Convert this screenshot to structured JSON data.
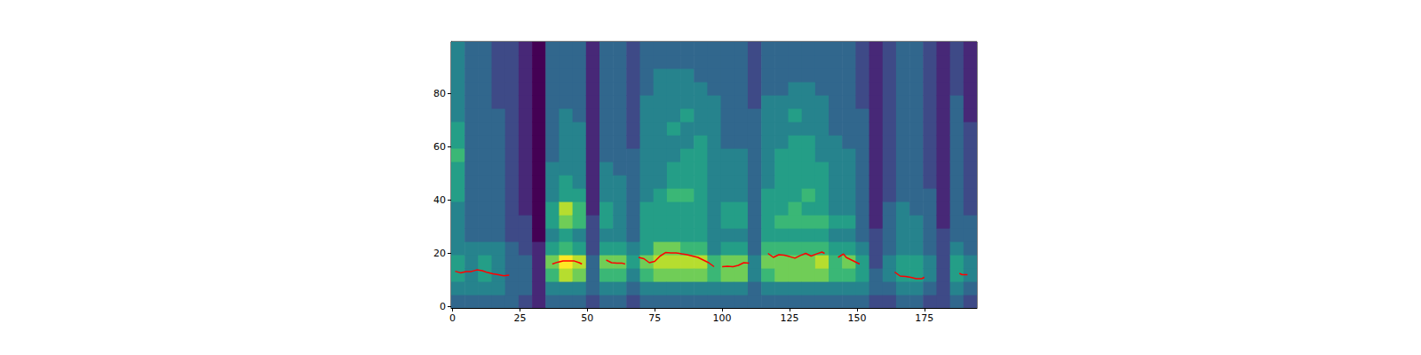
{
  "chart_data": {
    "type": "heatmap",
    "xlim": [
      -0.5,
      194.5
    ],
    "ylim": [
      -0.5,
      99.5
    ],
    "xticks": [
      0,
      25,
      50,
      75,
      100,
      125,
      150,
      175
    ],
    "yticks": [
      0,
      20,
      40,
      60,
      80
    ],
    "x": [
      2,
      7,
      12,
      17,
      22,
      27,
      32,
      37,
      42,
      47,
      52,
      57,
      62,
      67,
      72,
      77,
      82,
      87,
      92,
      97,
      102,
      107,
      112,
      117,
      122,
      127,
      132,
      137,
      142,
      147,
      152,
      157,
      162,
      167,
      172,
      177,
      182,
      187,
      192
    ],
    "y": [
      2,
      7,
      12,
      17,
      22,
      27,
      32,
      37,
      42,
      47,
      52,
      57,
      62,
      67,
      72,
      77,
      82,
      87,
      92,
      97
    ],
    "color_range": [
      0,
      9
    ],
    "cells": [
      [
        3,
        4,
        5,
        5,
        4,
        4,
        4,
        4,
        5,
        5,
        5,
        6,
        5,
        5,
        4,
        4,
        4,
        4,
        4,
        4
      ],
      [
        3,
        4,
        4,
        4,
        4,
        3,
        3,
        3,
        3,
        3,
        3,
        3,
        3,
        3,
        3,
        3,
        3,
        3,
        3,
        3
      ],
      [
        3,
        4,
        5,
        5,
        4,
        3,
        3,
        3,
        3,
        3,
        3,
        3,
        3,
        3,
        3,
        3,
        3,
        3,
        3,
        3
      ],
      [
        3,
        4,
        4,
        4,
        4,
        3,
        3,
        3,
        3,
        3,
        3,
        3,
        3,
        3,
        3,
        2,
        2,
        2,
        2,
        2
      ],
      [
        3,
        3,
        3,
        3,
        3,
        2,
        2,
        2,
        2,
        2,
        2,
        2,
        2,
        2,
        2,
        2,
        2,
        2,
        2,
        2
      ],
      [
        2,
        3,
        3,
        3,
        2,
        2,
        2,
        1,
        1,
        1,
        1,
        1,
        1,
        1,
        1,
        1,
        1,
        1,
        1,
        1
      ],
      [
        1,
        1,
        1,
        1,
        1,
        0,
        0,
        0,
        0,
        0,
        0,
        0,
        0,
        0,
        0,
        0,
        0,
        0,
        0,
        0
      ],
      [
        3,
        4,
        6,
        7,
        5,
        4,
        5,
        5,
        4,
        4,
        4,
        3,
        3,
        3,
        3,
        3,
        3,
        3,
        3,
        3
      ],
      [
        3,
        4,
        8,
        9,
        6,
        5,
        7,
        8,
        5,
        5,
        4,
        4,
        4,
        4,
        4,
        3,
        3,
        3,
        3,
        3
      ],
      [
        3,
        4,
        7,
        8,
        5,
        4,
        6,
        6,
        5,
        4,
        4,
        4,
        4,
        4,
        3,
        3,
        3,
        3,
        3,
        3
      ],
      [
        2,
        3,
        3,
        3,
        2,
        2,
        2,
        1,
        1,
        1,
        1,
        1,
        1,
        1,
        1,
        1,
        1,
        1,
        1,
        1
      ],
      [
        3,
        4,
        6,
        7,
        5,
        4,
        5,
        5,
        4,
        4,
        4,
        3,
        3,
        3,
        3,
        3,
        3,
        3,
        3,
        3
      ],
      [
        3,
        4,
        6,
        7,
        5,
        4,
        4,
        4,
        4,
        4,
        3,
        3,
        3,
        3,
        3,
        3,
        3,
        3,
        3,
        3
      ],
      [
        2,
        3,
        4,
        5,
        4,
        3,
        3,
        3,
        3,
        3,
        3,
        3,
        2,
        2,
        2,
        2,
        2,
        2,
        2,
        2
      ],
      [
        3,
        4,
        6,
        7,
        5,
        5,
        5,
        5,
        4,
        4,
        4,
        4,
        4,
        4,
        4,
        4,
        3,
        3,
        3,
        3
      ],
      [
        3,
        4,
        7,
        8,
        7,
        5,
        5,
        5,
        5,
        4,
        4,
        4,
        4,
        4,
        4,
        4,
        4,
        4,
        3,
        3
      ],
      [
        3,
        4,
        7,
        8,
        7,
        5,
        5,
        5,
        6,
        5,
        5,
        4,
        4,
        5,
        4,
        4,
        4,
        4,
        3,
        3
      ],
      [
        3,
        4,
        7,
        8,
        6,
        5,
        5,
        5,
        6,
        5,
        5,
        5,
        4,
        4,
        5,
        4,
        4,
        4,
        3,
        3
      ],
      [
        3,
        4,
        7,
        8,
        6,
        5,
        5,
        5,
        5,
        5,
        5,
        5,
        5,
        4,
        4,
        4,
        4,
        3,
        3,
        3
      ],
      [
        3,
        4,
        6,
        6,
        4,
        4,
        4,
        4,
        4,
        4,
        4,
        4,
        4,
        4,
        4,
        4,
        3,
        3,
        3,
        3
      ],
      [
        3,
        4,
        7,
        7,
        5,
        4,
        5,
        5,
        4,
        4,
        4,
        4,
        3,
        3,
        3,
        3,
        3,
        3,
        3,
        3
      ],
      [
        3,
        4,
        7,
        7,
        5,
        4,
        5,
        5,
        4,
        4,
        4,
        4,
        3,
        3,
        3,
        3,
        3,
        3,
        3,
        3
      ],
      [
        3,
        3,
        4,
        4,
        3,
        3,
        3,
        3,
        3,
        3,
        3,
        3,
        3,
        3,
        3,
        2,
        2,
        2,
        2,
        2
      ],
      [
        3,
        4,
        6,
        7,
        6,
        5,
        5,
        5,
        5,
        4,
        4,
        4,
        4,
        4,
        4,
        4,
        3,
        3,
        3,
        3
      ],
      [
        3,
        4,
        7,
        7,
        6,
        5,
        6,
        5,
        5,
        5,
        5,
        5,
        4,
        4,
        4,
        4,
        3,
        3,
        3,
        3
      ],
      [
        3,
        4,
        7,
        7,
        6,
        5,
        6,
        6,
        5,
        5,
        5,
        5,
        5,
        4,
        5,
        4,
        4,
        3,
        3,
        3
      ],
      [
        3,
        4,
        7,
        7,
        6,
        5,
        6,
        5,
        6,
        5,
        5,
        5,
        5,
        4,
        4,
        4,
        4,
        3,
        3,
        3
      ],
      [
        3,
        4,
        7,
        8,
        6,
        5,
        6,
        5,
        5,
        5,
        5,
        4,
        4,
        4,
        4,
        4,
        3,
        3,
        3,
        3
      ],
      [
        3,
        4,
        6,
        6,
        5,
        4,
        5,
        4,
        4,
        4,
        4,
        4,
        4,
        3,
        3,
        3,
        3,
        3,
        3,
        3
      ],
      [
        3,
        4,
        6,
        7,
        5,
        4,
        5,
        4,
        4,
        4,
        4,
        4,
        3,
        3,
        3,
        3,
        3,
        3,
        3,
        3
      ],
      [
        3,
        4,
        5,
        5,
        4,
        3,
        3,
        3,
        3,
        3,
        3,
        3,
        3,
        3,
        3,
        2,
        2,
        2,
        2,
        2
      ],
      [
        2,
        3,
        3,
        2,
        2,
        2,
        1,
        1,
        1,
        1,
        1,
        1,
        1,
        1,
        1,
        1,
        1,
        1,
        1,
        1
      ],
      [
        2,
        3,
        4,
        4,
        3,
        3,
        3,
        3,
        2,
        2,
        2,
        2,
        2,
        2,
        2,
        2,
        2,
        2,
        2,
        2
      ],
      [
        3,
        4,
        5,
        5,
        4,
        4,
        4,
        4,
        3,
        3,
        3,
        3,
        3,
        3,
        3,
        3,
        3,
        3,
        3,
        3
      ],
      [
        3,
        4,
        5,
        5,
        4,
        4,
        4,
        3,
        3,
        3,
        3,
        3,
        3,
        3,
        3,
        3,
        3,
        3,
        3,
        3
      ],
      [
        2,
        3,
        4,
        4,
        3,
        3,
        3,
        3,
        3,
        2,
        2,
        2,
        2,
        2,
        2,
        2,
        2,
        2,
        2,
        2
      ],
      [
        2,
        2,
        2,
        2,
        2,
        2,
        1,
        1,
        1,
        1,
        1,
        1,
        1,
        1,
        1,
        1,
        1,
        1,
        1,
        1
      ],
      [
        3,
        4,
        5,
        5,
        4,
        3,
        3,
        3,
        3,
        3,
        3,
        3,
        3,
        3,
        3,
        3,
        2,
        2,
        2,
        2
      ],
      [
        2,
        3,
        4,
        4,
        3,
        3,
        3,
        2,
        2,
        2,
        2,
        2,
        2,
        2,
        1,
        1,
        1,
        1,
        1,
        1
      ]
    ],
    "series": [
      {
        "type": "line",
        "color": "#ff0000",
        "x": [
          1,
          3,
          5,
          7,
          9,
          11,
          13,
          15,
          17,
          19,
          21,
          29,
          37,
          39,
          41,
          43,
          45,
          47,
          48,
          52,
          57,
          59,
          61,
          63,
          64,
          66,
          69,
          71,
          73,
          75,
          77,
          79,
          81,
          83,
          85,
          87,
          89,
          91,
          93,
          95,
          97,
          98.5,
          100,
          102,
          104,
          106,
          108,
          110,
          113,
          117,
          119,
          121,
          123,
          125,
          127,
          129,
          131,
          133,
          135,
          137,
          138,
          140,
          143,
          145,
          146,
          148,
          150,
          151,
          157,
          164,
          166,
          168,
          170,
          172,
          174,
          175,
          181,
          188,
          189,
          191
        ],
        "values": [
          13.3,
          12.7,
          13.2,
          13.2,
          13.8,
          13.5,
          12.8,
          12.3,
          12,
          11.6,
          11.8,
          null,
          16,
          16.7,
          17.2,
          17.2,
          17.2,
          16.5,
          16,
          null,
          17.5,
          16.5,
          16.3,
          16.3,
          16,
          null,
          18.5,
          18,
          16.5,
          17,
          19,
          20.3,
          20.2,
          20.2,
          19.8,
          19.5,
          19,
          18.5,
          17.5,
          16.5,
          15,
          null,
          15,
          15.2,
          15,
          15.5,
          16.5,
          16.3,
          null,
          20,
          18.5,
          19.5,
          19.3,
          18.8,
          18.2,
          19.2,
          20,
          19,
          19.8,
          20.5,
          20,
          null,
          18.5,
          19.8,
          18.5,
          17.5,
          16.5,
          16,
          null,
          13,
          11.5,
          11.3,
          11,
          10.5,
          10.5,
          11,
          null,
          12.5,
          12,
          12
        ]
      }
    ]
  }
}
